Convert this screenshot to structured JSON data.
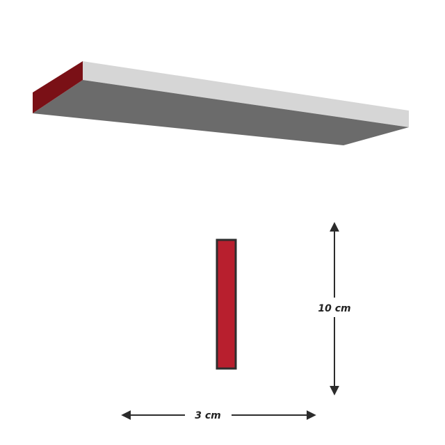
{
  "diagram": {
    "height_label": "10 cm",
    "width_label": "3 cm"
  },
  "colors": {
    "shelf_top": "#d6d6d6",
    "shelf_bottom": "#6b6b6b",
    "shelf_end": "#7a1016",
    "cross_section_fill": "#b81f2e",
    "cross_section_stroke": "#2e2e2e",
    "arrow": "#2b2b2b"
  }
}
